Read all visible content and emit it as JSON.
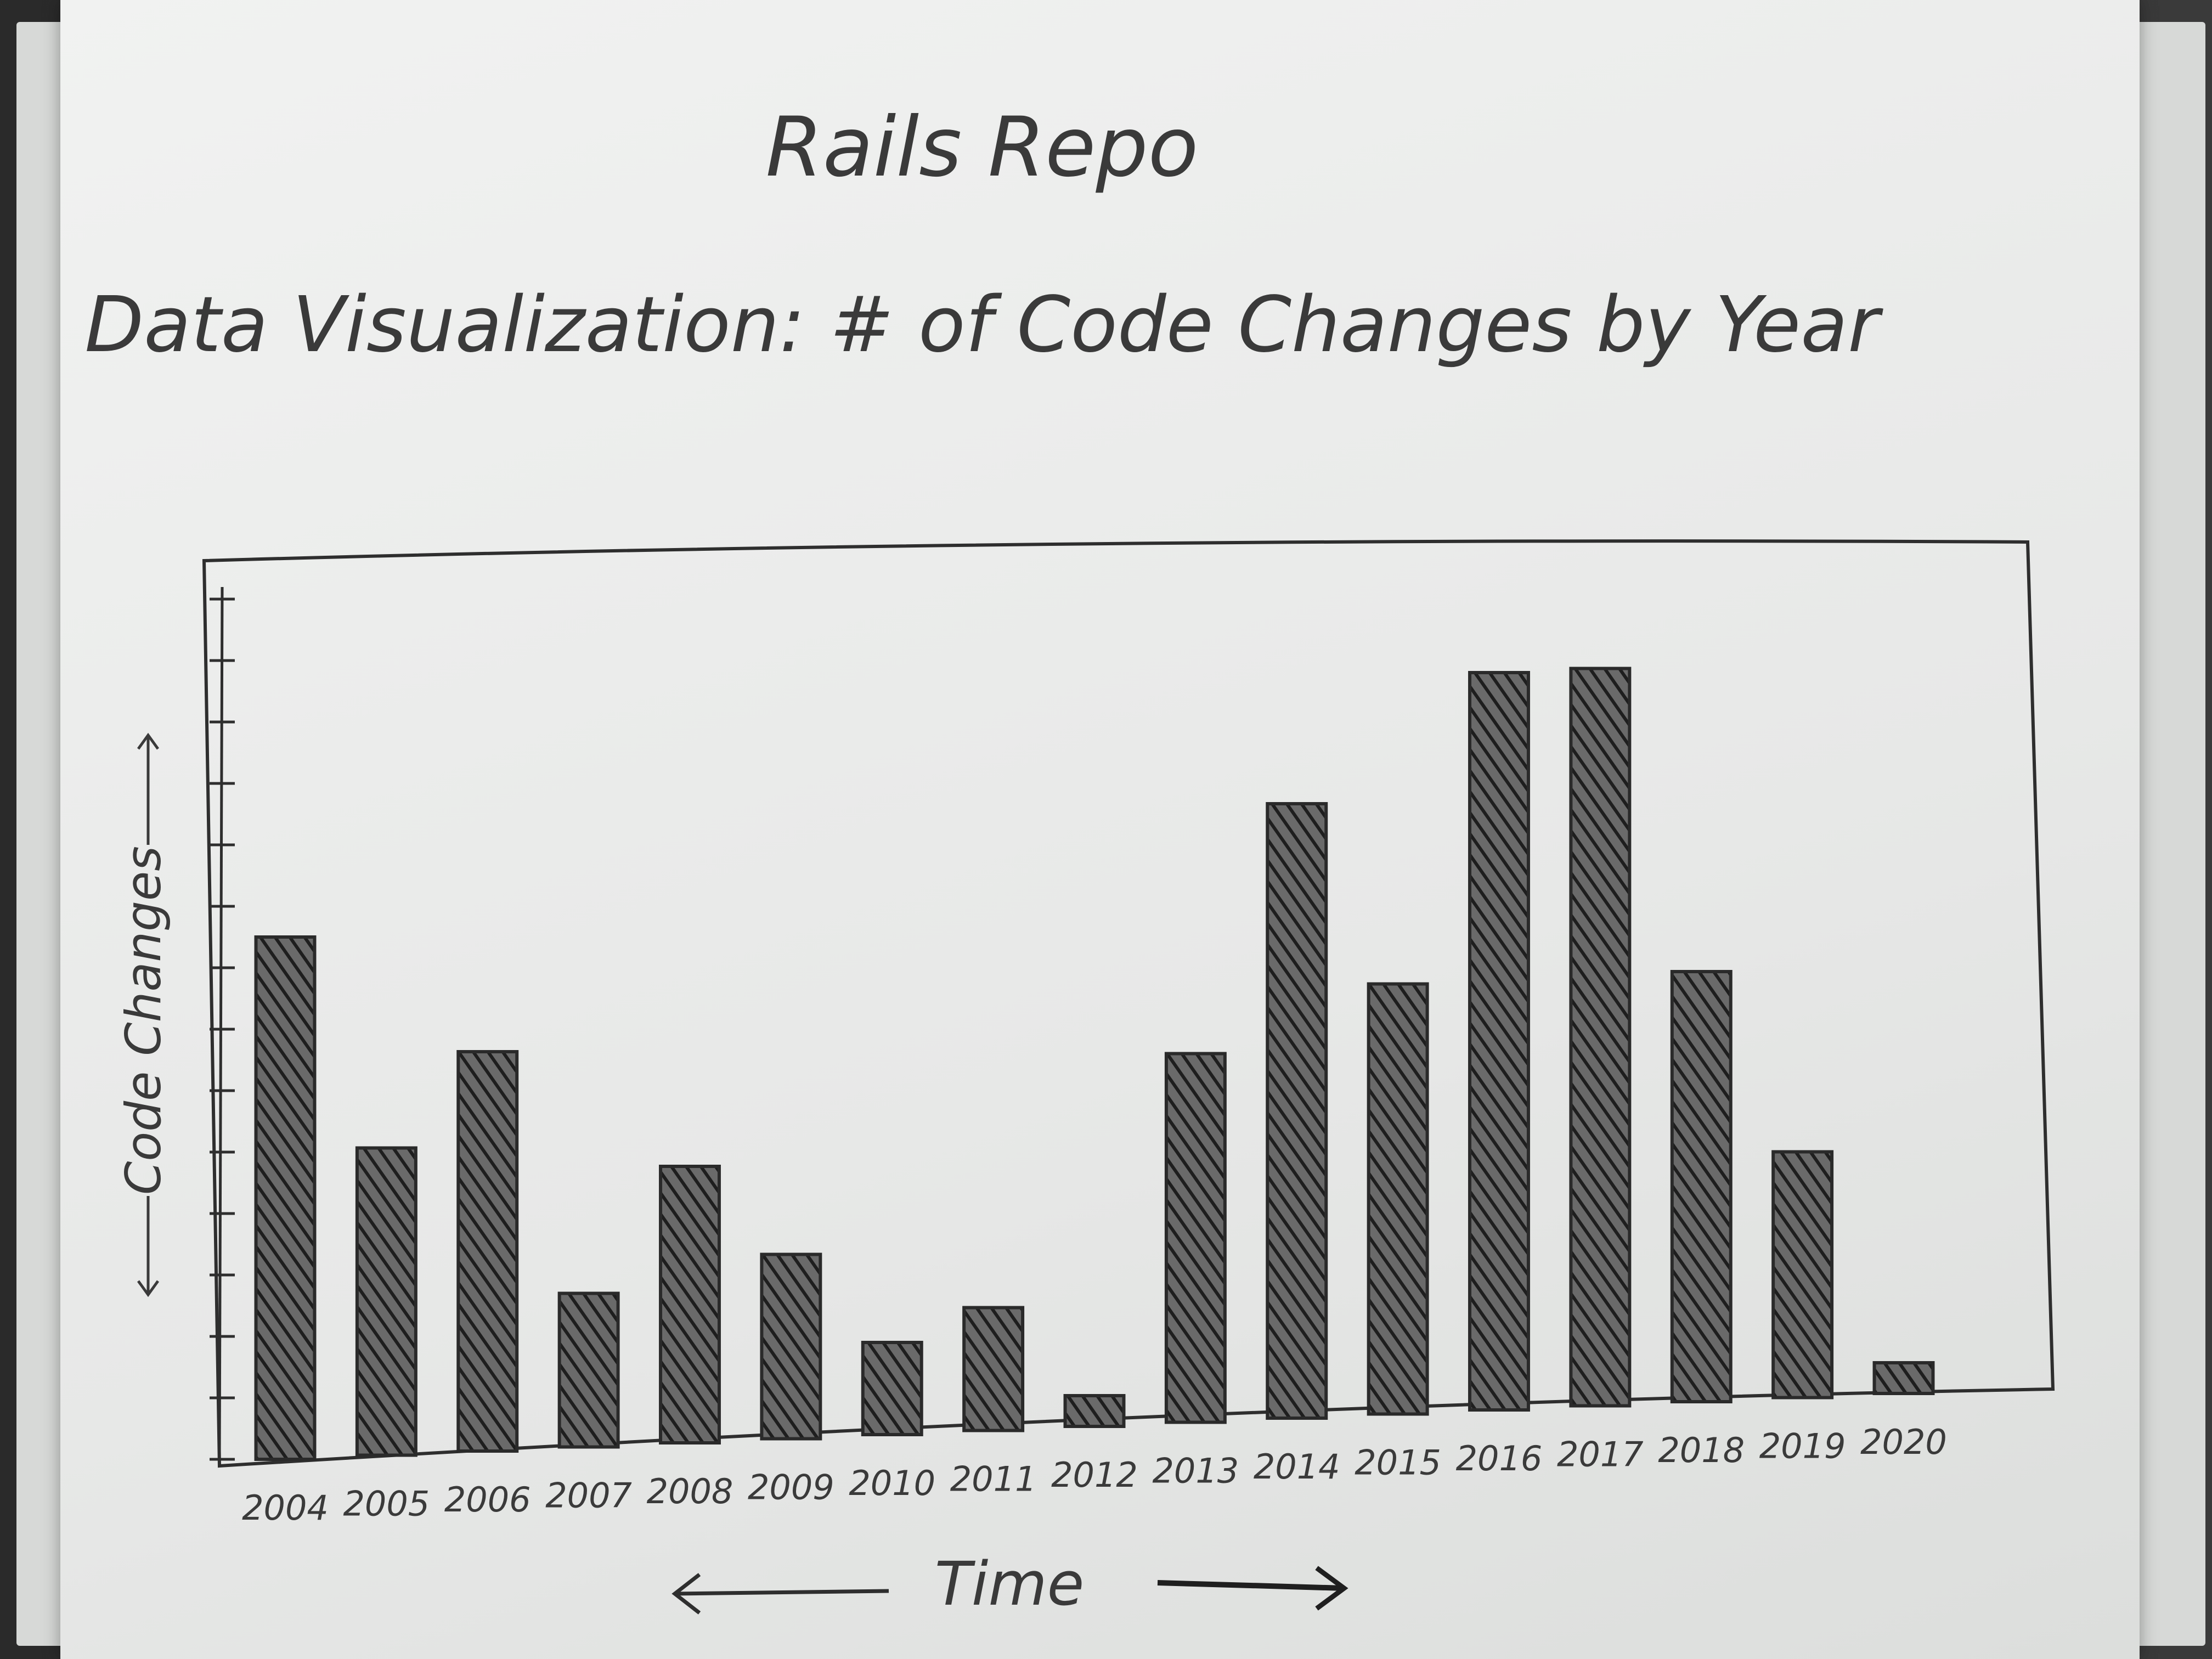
{
  "chart_data": {
    "type": "bar",
    "title": "Rails Repo",
    "subtitle": "Data Visualization: # of Code Changes by Year",
    "xlabel": "Time",
    "ylabel": "Code Changes",
    "categories": [
      "2004",
      "2005",
      "2006",
      "2007",
      "2008",
      "2009",
      "2010",
      "2011",
      "2012",
      "2013",
      "2014",
      "2015",
      "2016",
      "2017",
      "2018",
      "2019",
      "2020"
    ],
    "values": [
      17,
      10,
      13,
      5,
      9,
      6,
      3,
      4,
      1,
      12,
      20,
      14,
      24,
      24,
      14,
      8,
      1
    ],
    "ylim": [
      0,
      30
    ],
    "grid": false,
    "colors": {
      "ink": "#2a2a2a",
      "bar_fill": "#3c3c3c",
      "paper": "#eceeec"
    }
  }
}
